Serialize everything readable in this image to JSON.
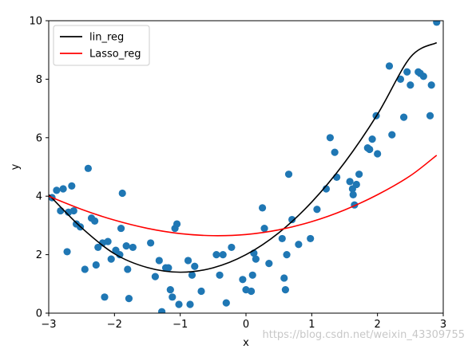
{
  "watermark": "https://blog.csdn.net/weixin_43309755",
  "chart_data": {
    "type": "scatter",
    "title": "",
    "xlabel": "x",
    "ylabel": "y",
    "xlim": [
      -3,
      3
    ],
    "ylim": [
      0,
      10
    ],
    "xticks": [
      -3,
      -2,
      -1,
      0,
      1,
      2,
      3
    ],
    "yticks": [
      0,
      2,
      4,
      6,
      8,
      10
    ],
    "xtick_labels": [
      "−3",
      "−2",
      "−1",
      "0",
      "1",
      "2",
      "3"
    ],
    "ytick_labels": [
      "0",
      "2",
      "4",
      "6",
      "8",
      "10"
    ],
    "grid": false,
    "legend_position": "top-left",
    "scatter": {
      "color": "#1f77b4",
      "x": [
        -2.95,
        -2.88,
        -2.82,
        -2.78,
        -2.72,
        -2.7,
        -2.65,
        -2.62,
        -2.58,
        -2.52,
        -2.45,
        -2.4,
        -2.35,
        -2.3,
        -2.28,
        -2.25,
        -2.18,
        -2.15,
        -2.1,
        -2.05,
        -1.98,
        -1.92,
        -1.9,
        -1.88,
        -1.82,
        -1.8,
        -1.78,
        -1.72,
        -1.45,
        -1.38,
        -1.32,
        -1.28,
        -1.22,
        -1.18,
        -1.15,
        -1.12,
        -1.08,
        -1.05,
        -1.02,
        -0.88,
        -0.85,
        -0.82,
        -0.78,
        -0.68,
        -0.45,
        -0.4,
        -0.35,
        -0.3,
        -0.22,
        -0.05,
        0.0,
        0.08,
        0.1,
        0.12,
        0.15,
        0.25,
        0.28,
        0.35,
        0.55,
        0.58,
        0.6,
        0.62,
        0.65,
        0.7,
        0.8,
        0.98,
        1.08,
        1.22,
        1.28,
        1.35,
        1.38,
        1.58,
        1.62,
        1.63,
        1.65,
        1.68,
        1.72,
        1.85,
        1.88,
        1.92,
        1.98,
        2.0,
        2.18,
        2.22,
        2.35,
        2.4,
        2.45,
        2.5,
        2.62,
        2.65,
        2.7,
        2.8,
        2.82,
        2.9
      ],
      "y": [
        3.95,
        4.2,
        3.5,
        4.25,
        2.1,
        3.45,
        4.35,
        3.5,
        3.05,
        2.95,
        1.5,
        4.95,
        3.25,
        3.15,
        1.65,
        2.25,
        2.4,
        0.55,
        2.45,
        1.85,
        2.15,
        2.0,
        2.9,
        4.1,
        2.3,
        1.5,
        0.5,
        2.25,
        2.4,
        1.25,
        1.8,
        0.05,
        1.55,
        1.55,
        0.8,
        0.55,
        2.9,
        3.05,
        0.3,
        1.8,
        0.3,
        1.3,
        1.6,
        0.75,
        2.0,
        1.3,
        2.0,
        0.35,
        2.25,
        1.15,
        0.8,
        0.75,
        1.3,
        2.05,
        1.85,
        3.6,
        2.9,
        1.7,
        2.55,
        1.2,
        0.8,
        2.0,
        4.75,
        3.2,
        2.35,
        2.55,
        3.55,
        4.25,
        6.0,
        5.5,
        4.65,
        4.5,
        4.25,
        4.05,
        3.7,
        4.4,
        4.75,
        5.65,
        5.6,
        5.95,
        6.75,
        5.45,
        8.45,
        6.1,
        8.0,
        6.7,
        8.25,
        7.8,
        8.25,
        8.2,
        8.1,
        6.75,
        7.8,
        9.95
      ]
    },
    "series": [
      {
        "name": "lin_reg",
        "color": "#000000",
        "x": [
          -3,
          -2.5,
          -2,
          -1.5,
          -1,
          -0.5,
          0,
          0.5,
          1,
          1.5,
          2,
          2.5,
          2.9
        ],
        "y": [
          4.05,
          2.92,
          2.03,
          1.56,
          1.4,
          1.55,
          2.0,
          2.75,
          3.8,
          5.15,
          6.8,
          8.75,
          9.25
        ]
      },
      {
        "name": "Lasso_reg",
        "color": "#ff0000",
        "x": [
          -3,
          -2.5,
          -2,
          -1.5,
          -1,
          -0.5,
          0,
          0.5,
          1,
          1.5,
          2,
          2.5,
          2.9
        ],
        "y": [
          4.0,
          3.55,
          3.18,
          2.9,
          2.72,
          2.65,
          2.69,
          2.85,
          3.13,
          3.53,
          4.05,
          4.7,
          5.4
        ]
      }
    ]
  }
}
